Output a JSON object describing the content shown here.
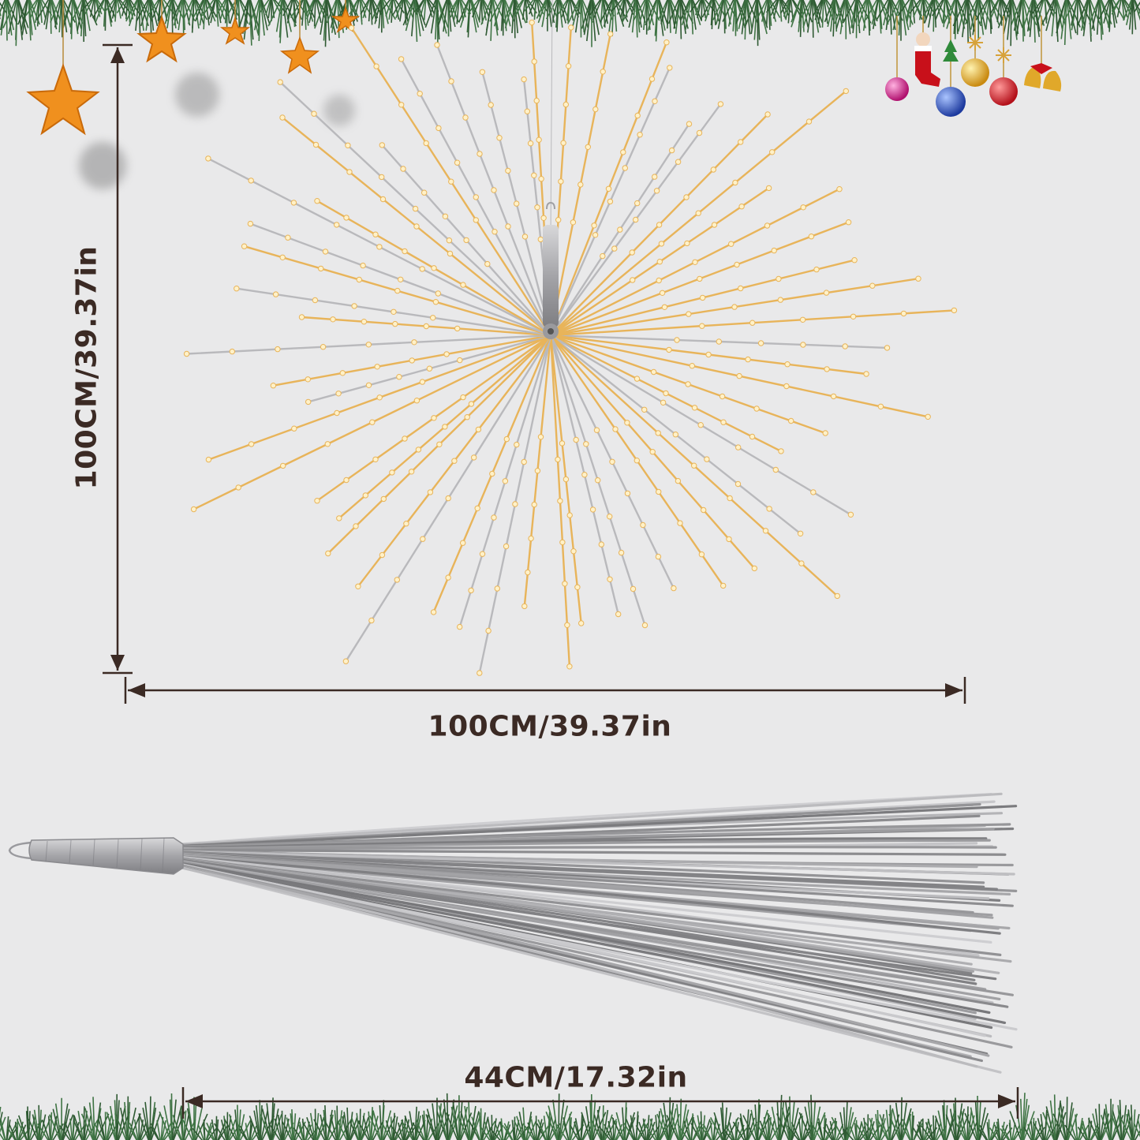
{
  "dimensions": {
    "height_label": "100CM/39.37in",
    "width_label": "100CM/39.37in",
    "folded_length_label": "44CM/17.32in"
  },
  "colors": {
    "background": "#e9e9ea",
    "dimension_line": "#3b2a24",
    "warm_light": "#e8b45a",
    "silver_wire": "#b9b9bc",
    "pine": "#2f5a33",
    "star": "#f08a1c"
  },
  "decorations": {
    "top_left": "hanging-stars",
    "top_right": "christmas-ornaments",
    "borders": "pine-garland"
  }
}
